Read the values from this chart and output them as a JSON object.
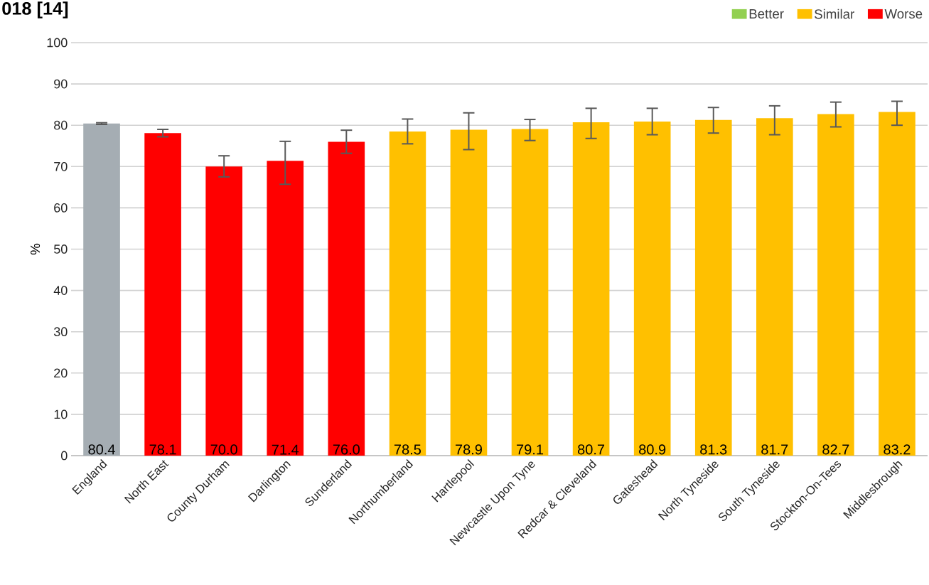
{
  "chart_data": {
    "type": "bar",
    "title": "018 [14]",
    "ylabel": "%",
    "categories": [
      "England",
      "North East",
      "County Durham",
      "Darlington",
      "Sunderland",
      "Northumberland",
      "Hartlepool",
      "Newcastle Upon Tyne",
      "Redcar & Cleveland",
      "Gateshead",
      "North Tyneside",
      "South Tyneside",
      "Stockton-On-Tees",
      "Middlesbrough"
    ],
    "series": [
      {
        "color": "#a5adb3",
        "values": [
          80.4,
          null,
          null,
          null,
          null,
          null,
          null,
          null,
          null,
          null,
          null,
          null,
          null,
          null
        ],
        "errors": [
          [
            80.2,
            80.6
          ],
          null,
          null,
          null,
          null,
          null,
          null,
          null,
          null,
          null,
          null,
          null,
          null,
          null
        ]
      },
      {
        "name": "Better",
        "color": "#92d050",
        "values": [
          null,
          null,
          null,
          null,
          null,
          null,
          null,
          null,
          null,
          null,
          null,
          null,
          null,
          null
        ]
      },
      {
        "name": "Similar",
        "color": "#ffc000",
        "values": [
          null,
          null,
          null,
          null,
          null,
          78.5,
          78.9,
          79.1,
          80.7,
          80.9,
          81.3,
          81.7,
          82.7,
          83.2
        ],
        "errors": [
          null,
          null,
          null,
          null,
          null,
          [
            75.5,
            81.5
          ],
          [
            74.1,
            83.0
          ],
          [
            76.3,
            81.4
          ],
          [
            76.8,
            84.1
          ],
          [
            77.7,
            84.1
          ],
          [
            78.1,
            84.3
          ],
          [
            77.7,
            84.7
          ],
          [
            79.6,
            85.6
          ],
          [
            80.0,
            85.8
          ]
        ]
      },
      {
        "name": "Worse",
        "color": "#ff0000",
        "values": [
          null,
          78.1,
          70.0,
          71.4,
          76.0,
          null,
          null,
          null,
          null,
          null,
          null,
          null,
          null,
          null
        ],
        "value_labels": [
          null,
          "78.1",
          "70.0",
          "71.4",
          "76.0",
          null,
          null,
          null,
          null,
          null,
          null,
          null,
          null,
          null
        ],
        "errors": [
          null,
          [
            77.2,
            79.0
          ],
          [
            67.5,
            72.6
          ],
          [
            65.7,
            76.1
          ],
          [
            73.2,
            78.8
          ],
          null,
          null,
          null,
          null,
          null,
          null,
          null,
          null,
          null
        ]
      }
    ],
    "stacked": true,
    "ylim": [
      0,
      100
    ],
    "yticks": [
      0,
      10,
      20,
      30,
      40,
      50,
      60,
      70,
      80,
      90,
      100
    ],
    "grid": "y",
    "legend": "top right",
    "data_labels": true
  }
}
